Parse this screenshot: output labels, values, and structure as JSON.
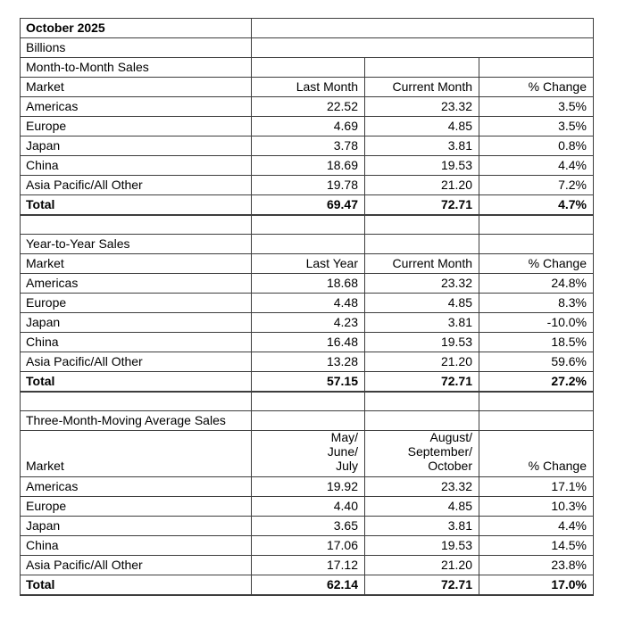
{
  "sheet": {
    "header_rows": [
      {
        "label": "October 2025",
        "bold": true
      },
      {
        "label": "Billions",
        "bold": false
      }
    ],
    "sections": [
      {
        "title": "Month-to-Month Sales",
        "tall_header": false,
        "columns": [
          "Market",
          "Last Month",
          "Current Month",
          "% Change"
        ],
        "rows": [
          [
            "Americas",
            "22.52",
            "23.32",
            "3.5%"
          ],
          [
            "Europe",
            "4.69",
            "4.85",
            "3.5%"
          ],
          [
            "Japan",
            "3.78",
            "3.81",
            "0.8%"
          ],
          [
            "China",
            "18.69",
            "19.53",
            "4.4%"
          ],
          [
            "Asia Pacific/All Other",
            "19.78",
            "21.20",
            "7.2%"
          ]
        ],
        "total": [
          "Total",
          "69.47",
          "72.71",
          "4.7%"
        ]
      },
      {
        "title": "Year-to-Year Sales",
        "tall_header": false,
        "columns": [
          "Market",
          "Last Year",
          "Current Month",
          "% Change"
        ],
        "rows": [
          [
            "Americas",
            "18.68",
            "23.32",
            "24.8%"
          ],
          [
            "Europe",
            "4.48",
            "4.85",
            "8.3%"
          ],
          [
            "Japan",
            "4.23",
            "3.81",
            "-10.0%"
          ],
          [
            "China",
            "16.48",
            "19.53",
            "18.5%"
          ],
          [
            "Asia Pacific/All Other",
            "13.28",
            "21.20",
            "59.6%"
          ]
        ],
        "total": [
          "Total",
          "57.15",
          "72.71",
          "27.2%"
        ]
      },
      {
        "title": "Three-Month-Moving Average Sales",
        "tall_header": true,
        "columns": [
          "Market",
          "May/\nJune/\nJuly",
          "August/\nSeptember/\nOctober",
          "% Change"
        ],
        "rows": [
          [
            "Americas",
            "19.92",
            "23.32",
            "17.1%"
          ],
          [
            "Europe",
            "4.40",
            "4.85",
            "10.3%"
          ],
          [
            "Japan",
            "3.65",
            "3.81",
            "4.4%"
          ],
          [
            "China",
            "17.06",
            "19.53",
            "14.5%"
          ],
          [
            "Asia Pacific/All Other",
            "17.12",
            "21.20",
            "23.8%"
          ]
        ],
        "total": [
          "Total",
          "62.14",
          "72.71",
          "17.0%"
        ]
      }
    ],
    "colors": {
      "border": "#3d3d3d",
      "text": "#000000",
      "background": "#ffffff"
    }
  }
}
